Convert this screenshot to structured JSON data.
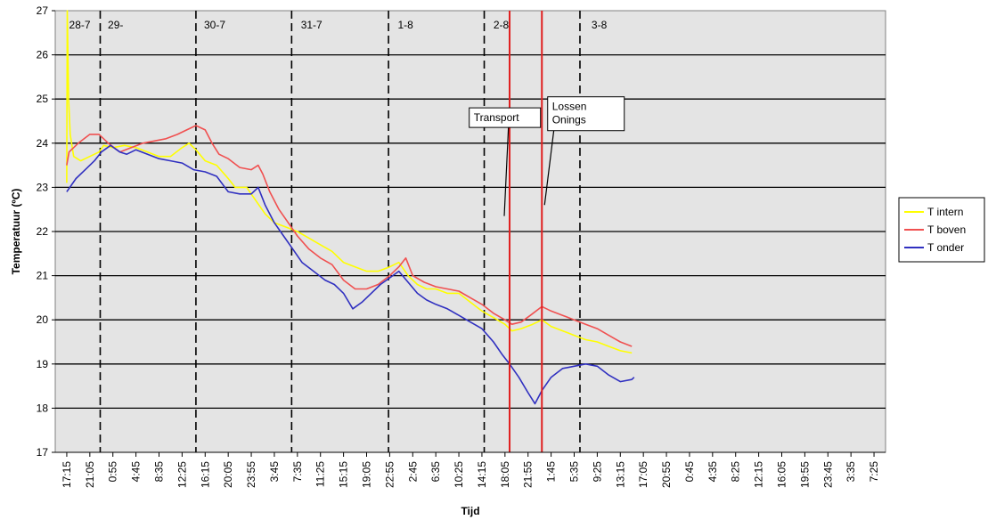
{
  "chart_data": {
    "type": "line",
    "xlabel": "Tijd",
    "ylabel": "Temperatuur (ºC)",
    "ylim": [
      17,
      27
    ],
    "y_ticks": [
      17,
      18,
      19,
      20,
      21,
      22,
      23,
      24,
      25,
      26,
      27
    ],
    "grid": true,
    "legend_position": "right",
    "x_tick_labels": [
      "17:15",
      "21:05",
      "0:55",
      "4:45",
      "8:35",
      "12:25",
      "16:15",
      "20:05",
      "23:55",
      "3:45",
      "7:35",
      "11:25",
      "15:15",
      "19:05",
      "22:55",
      "2:45",
      "6:35",
      "10:25",
      "14:15",
      "18:05",
      "21:55",
      "1:45",
      "5:35",
      "9:25",
      "13:15",
      "17:05",
      "20:55",
      "0:45",
      "4:35",
      "8:25",
      "12:15",
      "16:05",
      "19:55",
      "23:45",
      "3:35",
      "7:25"
    ],
    "x": [
      0,
      1,
      2,
      3,
      4,
      5,
      6,
      7,
      8,
      9,
      10,
      11,
      12,
      13,
      14,
      15,
      16,
      17,
      18,
      19,
      20,
      21,
      22,
      23,
      24,
      25,
      26,
      27,
      28,
      29,
      30,
      31,
      32,
      33,
      34,
      35
    ],
    "day_markers": [
      {
        "label": "28-7",
        "x": 0.1
      },
      {
        "label": "29-",
        "x": 1.78
      },
      {
        "label": "30-7",
        "x": 5.95
      },
      {
        "label": "31-7",
        "x": 10.15
      },
      {
        "label": "1-8",
        "x": 14.35
      },
      {
        "label": "2-8",
        "x": 18.5
      },
      {
        "label": "3-8",
        "x": 22.75
      }
    ],
    "day_boundaries": [
      1.45,
      5.6,
      9.75,
      13.95,
      18.1,
      22.25
    ],
    "event_lines": [
      {
        "x": 19.2,
        "color": "#e02020"
      },
      {
        "x": 20.6,
        "color": "#e02020"
      }
    ],
    "annotations": [
      {
        "text": [
          "Transport"
        ],
        "target_x": 19.2,
        "target_y": 22.35
      },
      {
        "text": [
          "Lossen",
          "Onings"
        ],
        "target_x": 20.6,
        "target_y": 22.6
      }
    ],
    "series": [
      {
        "name": "T intern",
        "color": "#ffff00",
        "points": [
          [
            0,
            23.1
          ],
          [
            0.02,
            27
          ],
          [
            0.08,
            25
          ],
          [
            0.15,
            24.2
          ],
          [
            0.3,
            23.7
          ],
          [
            0.6,
            23.6
          ],
          [
            1.0,
            23.7
          ],
          [
            1.4,
            23.8
          ],
          [
            1.6,
            23.95
          ],
          [
            2.0,
            23.9
          ],
          [
            2.5,
            23.95
          ],
          [
            3.0,
            23.9
          ],
          [
            3.5,
            23.8
          ],
          [
            4.0,
            23.7
          ],
          [
            4.5,
            23.7
          ],
          [
            5.0,
            23.9
          ],
          [
            5.3,
            24.0
          ],
          [
            5.6,
            23.85
          ],
          [
            6.0,
            23.6
          ],
          [
            6.5,
            23.5
          ],
          [
            7.0,
            23.2
          ],
          [
            7.3,
            23.0
          ],
          [
            7.8,
            23.0
          ],
          [
            8.2,
            22.7
          ],
          [
            8.6,
            22.4
          ],
          [
            9.0,
            22.2
          ],
          [
            9.5,
            22.1
          ],
          [
            10.0,
            22.0
          ],
          [
            10.5,
            21.85
          ],
          [
            11.0,
            21.7
          ],
          [
            11.5,
            21.55
          ],
          [
            12.0,
            21.3
          ],
          [
            12.5,
            21.2
          ],
          [
            13.0,
            21.1
          ],
          [
            13.5,
            21.1
          ],
          [
            14.0,
            21.2
          ],
          [
            14.4,
            21.3
          ],
          [
            14.8,
            21.0
          ],
          [
            15.2,
            20.8
          ],
          [
            15.6,
            20.7
          ],
          [
            16.0,
            20.7
          ],
          [
            16.5,
            20.6
          ],
          [
            17.0,
            20.6
          ],
          [
            17.5,
            20.4
          ],
          [
            18.0,
            20.2
          ],
          [
            18.5,
            20.05
          ],
          [
            19.0,
            19.9
          ],
          [
            19.3,
            19.75
          ],
          [
            19.7,
            19.8
          ],
          [
            20.2,
            19.9
          ],
          [
            20.6,
            20.0
          ],
          [
            21.0,
            19.85
          ],
          [
            21.5,
            19.75
          ],
          [
            22.0,
            19.65
          ],
          [
            22.5,
            19.55
          ],
          [
            23.0,
            19.5
          ],
          [
            23.5,
            19.4
          ],
          [
            24.0,
            19.3
          ],
          [
            24.5,
            19.25
          ]
        ]
      },
      {
        "name": "T boven",
        "color": "#f05050",
        "points": [
          [
            0,
            23.5
          ],
          [
            0.1,
            23.8
          ],
          [
            0.5,
            24.0
          ],
          [
            1.0,
            24.2
          ],
          [
            1.4,
            24.2
          ],
          [
            1.8,
            24.0
          ],
          [
            2.3,
            23.8
          ],
          [
            2.8,
            23.9
          ],
          [
            3.3,
            24.0
          ],
          [
            3.8,
            24.05
          ],
          [
            4.3,
            24.1
          ],
          [
            4.8,
            24.2
          ],
          [
            5.2,
            24.3
          ],
          [
            5.6,
            24.4
          ],
          [
            6.0,
            24.3
          ],
          [
            6.3,
            24.0
          ],
          [
            6.6,
            23.75
          ],
          [
            7.0,
            23.65
          ],
          [
            7.5,
            23.45
          ],
          [
            8.0,
            23.4
          ],
          [
            8.3,
            23.5
          ],
          [
            8.5,
            23.3
          ],
          [
            8.8,
            22.9
          ],
          [
            9.2,
            22.5
          ],
          [
            9.6,
            22.2
          ],
          [
            10.0,
            21.9
          ],
          [
            10.5,
            21.6
          ],
          [
            11.0,
            21.4
          ],
          [
            11.5,
            21.25
          ],
          [
            12.0,
            20.9
          ],
          [
            12.5,
            20.7
          ],
          [
            13.0,
            20.7
          ],
          [
            13.5,
            20.8
          ],
          [
            14.0,
            21.0
          ],
          [
            14.4,
            21.2
          ],
          [
            14.7,
            21.4
          ],
          [
            15.0,
            21.0
          ],
          [
            15.5,
            20.85
          ],
          [
            16.0,
            20.75
          ],
          [
            16.5,
            20.7
          ],
          [
            17.0,
            20.65
          ],
          [
            17.5,
            20.5
          ],
          [
            18.0,
            20.35
          ],
          [
            18.5,
            20.15
          ],
          [
            19.0,
            20.0
          ],
          [
            19.3,
            19.9
          ],
          [
            19.7,
            19.95
          ],
          [
            20.1,
            20.1
          ],
          [
            20.6,
            20.3
          ],
          [
            21.0,
            20.2
          ],
          [
            21.5,
            20.1
          ],
          [
            22.0,
            20.0
          ],
          [
            22.5,
            19.9
          ],
          [
            23.0,
            19.8
          ],
          [
            23.5,
            19.65
          ],
          [
            24.0,
            19.5
          ],
          [
            24.5,
            19.4
          ]
        ]
      },
      {
        "name": "T onder",
        "color": "#3030c0",
        "points": [
          [
            0,
            22.9
          ],
          [
            0.4,
            23.2
          ],
          [
            0.8,
            23.4
          ],
          [
            1.2,
            23.6
          ],
          [
            1.5,
            23.8
          ],
          [
            1.9,
            23.95
          ],
          [
            2.3,
            23.8
          ],
          [
            2.6,
            23.75
          ],
          [
            3.0,
            23.85
          ],
          [
            3.5,
            23.75
          ],
          [
            4.0,
            23.65
          ],
          [
            4.5,
            23.6
          ],
          [
            5.0,
            23.55
          ],
          [
            5.5,
            23.4
          ],
          [
            6.0,
            23.35
          ],
          [
            6.5,
            23.25
          ],
          [
            7.0,
            22.9
          ],
          [
            7.5,
            22.85
          ],
          [
            8.0,
            22.85
          ],
          [
            8.3,
            23.0
          ],
          [
            8.6,
            22.6
          ],
          [
            9.0,
            22.2
          ],
          [
            9.4,
            21.9
          ],
          [
            9.8,
            21.6
          ],
          [
            10.2,
            21.3
          ],
          [
            10.7,
            21.1
          ],
          [
            11.2,
            20.9
          ],
          [
            11.6,
            20.8
          ],
          [
            12.0,
            20.6
          ],
          [
            12.4,
            20.25
          ],
          [
            12.8,
            20.4
          ],
          [
            13.2,
            20.6
          ],
          [
            13.6,
            20.8
          ],
          [
            14.0,
            20.95
          ],
          [
            14.4,
            21.1
          ],
          [
            14.8,
            20.85
          ],
          [
            15.2,
            20.6
          ],
          [
            15.6,
            20.45
          ],
          [
            16.0,
            20.35
          ],
          [
            16.5,
            20.25
          ],
          [
            17.0,
            20.1
          ],
          [
            17.5,
            19.95
          ],
          [
            18.0,
            19.8
          ],
          [
            18.5,
            19.5
          ],
          [
            18.9,
            19.2
          ],
          [
            19.2,
            19.0
          ],
          [
            19.6,
            18.7
          ],
          [
            20.0,
            18.35
          ],
          [
            20.3,
            18.1
          ],
          [
            20.6,
            18.4
          ],
          [
            21.0,
            18.7
          ],
          [
            21.5,
            18.9
          ],
          [
            22.0,
            18.95
          ],
          [
            22.5,
            19.0
          ],
          [
            23.0,
            18.95
          ],
          [
            23.5,
            18.75
          ],
          [
            24.0,
            18.6
          ],
          [
            24.5,
            18.65
          ],
          [
            24.6,
            18.7
          ]
        ]
      }
    ]
  }
}
